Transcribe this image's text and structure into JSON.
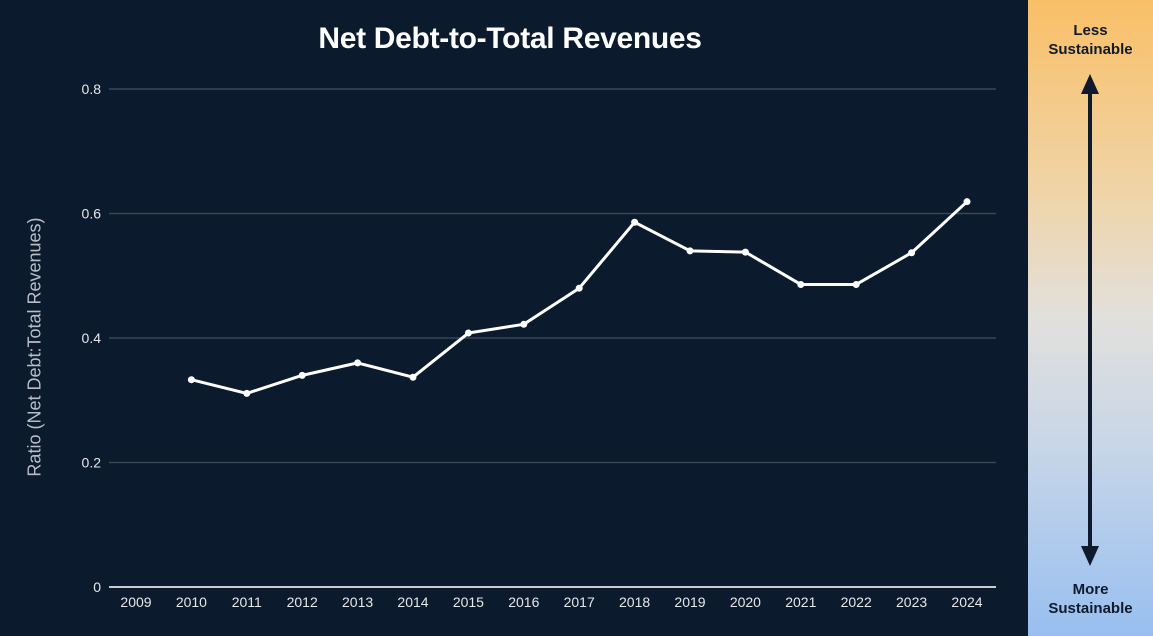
{
  "chart_data": {
    "type": "line",
    "title": "Net Debt-to-Total Revenues",
    "xlabel": "",
    "ylabel": "Ratio (Net Debt:Total Revenues)",
    "categories": [
      "2009",
      "2010",
      "2011",
      "2012",
      "2013",
      "2014",
      "2015",
      "2016",
      "2017",
      "2018",
      "2019",
      "2020",
      "2021",
      "2022",
      "2023",
      "2024"
    ],
    "series": [
      {
        "name": "Net Debt-to-Total Revenues",
        "values": [
          null,
          0.333,
          0.311,
          0.34,
          0.36,
          0.337,
          0.408,
          0.422,
          0.48,
          0.586,
          0.54,
          0.538,
          0.486,
          0.486,
          0.537,
          0.619
        ],
        "color": "#ffffff"
      }
    ],
    "ylim": [
      0,
      0.8
    ],
    "yticks": [
      0,
      0.2,
      0.4,
      0.6,
      0.8
    ],
    "ytick_labels": [
      "0",
      "0.2",
      "0.4",
      "0.6",
      "0.8"
    ],
    "grid": true,
    "legend": "none"
  },
  "scale": {
    "top_label_line1": "Less",
    "top_label_line2": "Sustainable",
    "bottom_label_line1": "More",
    "bottom_label_line2": "Sustainable"
  },
  "colors": {
    "background": "#0b1a2c",
    "gridline": "#3a4656",
    "axis_text": "#e6e8eb",
    "scale_top": "#f9bf67",
    "scale_bottom": "#98bff0"
  }
}
